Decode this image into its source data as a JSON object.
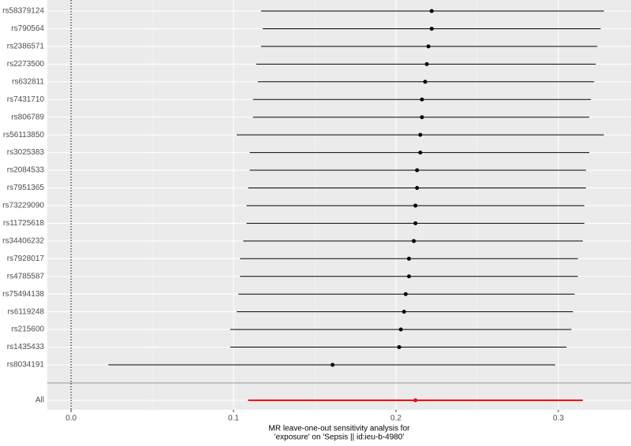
{
  "chart_data": {
    "type": "forest",
    "categories": [
      "rs58379124",
      "rs790564",
      "rs2386571",
      "rs2273500",
      "rs632811",
      "rs7431710",
      "rs806789",
      "rs56113850",
      "rs3025383",
      "rs2084533",
      "rs7951365",
      "rs73229090",
      "rs11725618",
      "rs34406232",
      "rs7928017",
      "rs4785587",
      "rs75494138",
      "rs6119248",
      "rs215600",
      "rs1435433",
      "rs8034191"
    ],
    "values": [
      0.222,
      0.222,
      0.22,
      0.219,
      0.218,
      0.216,
      0.216,
      0.215,
      0.215,
      0.213,
      0.213,
      0.212,
      0.212,
      0.211,
      0.208,
      0.208,
      0.206,
      0.205,
      0.203,
      0.202,
      0.161
    ],
    "lower": [
      0.117,
      0.118,
      0.117,
      0.114,
      0.115,
      0.112,
      0.112,
      0.102,
      0.11,
      0.11,
      0.109,
      0.108,
      0.108,
      0.106,
      0.104,
      0.104,
      0.103,
      0.102,
      0.098,
      0.098,
      0.023
    ],
    "upper": [
      0.328,
      0.326,
      0.324,
      0.323,
      0.322,
      0.32,
      0.319,
      0.328,
      0.319,
      0.317,
      0.317,
      0.316,
      0.316,
      0.315,
      0.312,
      0.312,
      0.31,
      0.309,
      0.308,
      0.305,
      0.298
    ],
    "color": "#000000",
    "summary": {
      "label": "All",
      "value": 0.212,
      "lower": 0.109,
      "upper": 0.315,
      "color": "#ff0000"
    },
    "reference_line": 0,
    "xlim": [
      -0.0146,
      0.3447
    ],
    "xticks": [
      {
        "value": 0,
        "label": "0.0"
      },
      0.1,
      0.2,
      0.3
    ],
    "xlabel": [
      "MR leave-one-out sensitivity analysis for",
      "'exposure' on 'Sepsis || id:ieu-b-4980'"
    ],
    "grid": true
  }
}
